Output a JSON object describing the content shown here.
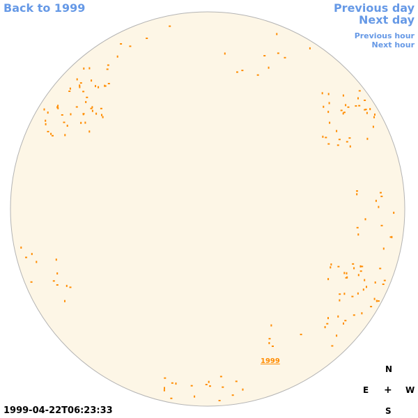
{
  "nav": {
    "back_label": "Back to 1999",
    "prev_day_label": "Previous day",
    "next_day_label": "Next day",
    "prev_hour_label": "Previous hour",
    "next_hour_label": "Next hour"
  },
  "map": {
    "year_link_label": "1999",
    "disk_fill": "#fdf6e6",
    "disk_stroke": "#b3b3b3",
    "feature_color": "#ff8c00"
  },
  "timestamp": "1999-04-22T06:23:33",
  "compass": {
    "north": "N",
    "east": "E",
    "center": "+",
    "west": "W",
    "south": "S"
  }
}
